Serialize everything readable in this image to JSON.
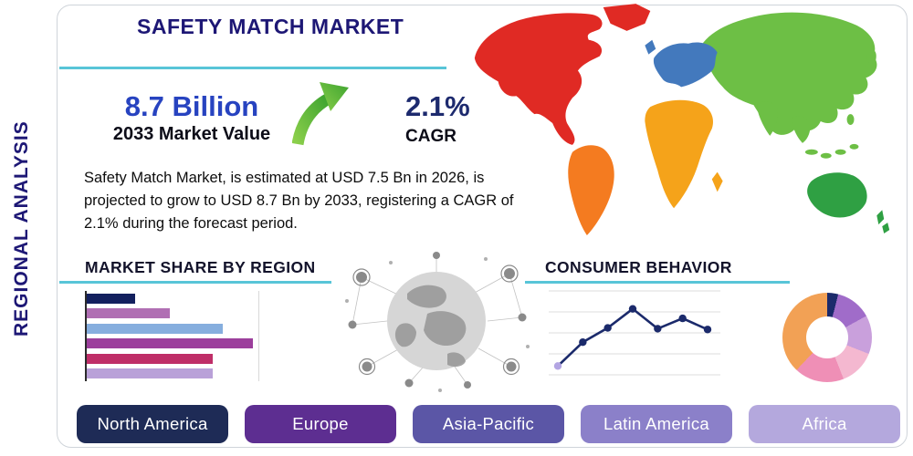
{
  "header": {
    "title": "SAFETY MATCH MARKET",
    "side_label": "REGIONAL ANALYSIS"
  },
  "stats": {
    "value": "8.7 Billion",
    "value_label": "2033 Market Value",
    "cagr": "2.1%",
    "cagr_label": "CAGR",
    "description": "Safety Match Market, is estimated at USD 7.5 Bn in 2026, is projected to grow to USD 8.7 Bn by 2033, registering a CAGR of 2.1% during the forecast period."
  },
  "sections": {
    "market_share_title": "MARKET SHARE BY REGION",
    "consumer_behavior_title": "CONSUMER BEHAVIOR"
  },
  "icons": {
    "growth_arrow": "up-right-growth-arrow",
    "globe": "global-network-globe"
  },
  "theme": {
    "navy": "#1d1775",
    "blue": "#2743c0",
    "teal_line": "#58c5d8",
    "green_arrow": "#5fb83e"
  },
  "region_buttons": [
    {
      "label": "North America",
      "color": "#1e2b56"
    },
    {
      "label": "Europe",
      "color": "#5d2e91"
    },
    {
      "label": "Asia-Pacific",
      "color": "#5b56a6"
    },
    {
      "label": "Latin America",
      "color": "#8b80c9"
    },
    {
      "label": "Africa",
      "color": "#b4a8dd"
    }
  ],
  "map_regions": [
    {
      "name": "north-america",
      "color": "#e02a24"
    },
    {
      "name": "greenland",
      "color": "#e02a24"
    },
    {
      "name": "south-america",
      "color": "#f47b20"
    },
    {
      "name": "europe",
      "color": "#4379bd"
    },
    {
      "name": "uk",
      "color": "#4379bd"
    },
    {
      "name": "africa",
      "color": "#f5a31a"
    },
    {
      "name": "madagascar",
      "color": "#f5a31a"
    },
    {
      "name": "asia",
      "color": "#6dbf45"
    },
    {
      "name": "india",
      "color": "#6dbf45"
    },
    {
      "name": "se-asia",
      "color": "#6dbf45"
    },
    {
      "name": "islands",
      "color": "#6dbf45"
    },
    {
      "name": "japan",
      "color": "#6dbf45"
    },
    {
      "name": "australia",
      "color": "#2fa043"
    },
    {
      "name": "new-zealand",
      "color": "#2fa043"
    }
  ],
  "chart_data": [
    {
      "name": "market_share_by_region",
      "type": "bar",
      "orientation": "horizontal",
      "title": "MARKET SHARE BY REGION",
      "categories": [
        "region-1",
        "region-2",
        "region-3",
        "region-4",
        "region-5",
        "region-6"
      ],
      "values": [
        55,
        94,
        154,
        188,
        142,
        142
      ],
      "xlim": [
        0,
        200
      ],
      "colors": [
        "#13205e",
        "#b06fb3",
        "#86aede",
        "#9c3f9c",
        "#bf2e68",
        "#b9a1d8"
      ],
      "grid": "single-vertical-reference-line",
      "value_labels": false
    },
    {
      "name": "consumer_behavior",
      "type": "line",
      "title": "CONSUMER BEHAVIOR",
      "x": [
        0,
        1,
        2,
        3,
        4,
        5,
        6
      ],
      "y": [
        10,
        40,
        58,
        82,
        57,
        70,
        56
      ],
      "ylim": [
        0,
        100
      ],
      "grid": "horizontal",
      "line_color": "#1b2a6b",
      "marker_colors": [
        "#b3a5e3",
        "#1b2a6b",
        "#1b2a6b",
        "#1b2a6b",
        "#1b2a6b",
        "#1b2a6b",
        "#1b2a6b"
      ]
    },
    {
      "name": "regional-share-donut",
      "type": "pie",
      "donut": true,
      "slices": [
        {
          "label": "slice-1",
          "value": 4,
          "color": "#1b2a6b"
        },
        {
          "label": "slice-2",
          "value": 13,
          "color": "#a06cc9"
        },
        {
          "label": "slice-3",
          "value": 14,
          "color": "#c9a0dc"
        },
        {
          "label": "slice-4",
          "value": 13,
          "color": "#f4b8d0"
        },
        {
          "label": "slice-5",
          "value": 18,
          "color": "#ef8fb6"
        },
        {
          "label": "slice-6",
          "value": 38,
          "color": "#f2a155"
        }
      ]
    }
  ]
}
